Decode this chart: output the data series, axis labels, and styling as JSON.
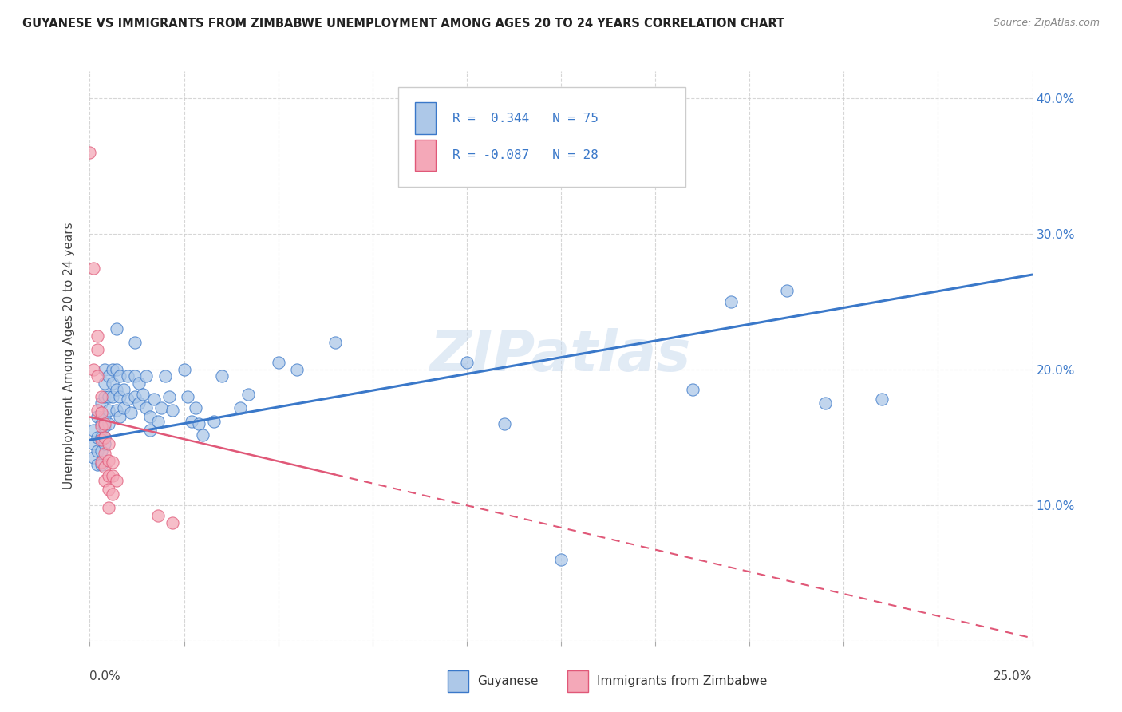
{
  "title": "GUYANESE VS IMMIGRANTS FROM ZIMBABWE UNEMPLOYMENT AMONG AGES 20 TO 24 YEARS CORRELATION CHART",
  "source": "Source: ZipAtlas.com",
  "ylabel": "Unemployment Among Ages 20 to 24 years",
  "legend_label1": "Guyanese",
  "legend_label2": "Immigrants from Zimbabwe",
  "R1": 0.344,
  "N1": 75,
  "R2": -0.087,
  "N2": 28,
  "color_blue": "#adc8e8",
  "color_pink": "#f4a8b8",
  "line_blue": "#3a78c9",
  "line_pink": "#e05878",
  "watermark": "ZIPatlas",
  "blue_points": [
    [
      0.001,
      0.155
    ],
    [
      0.001,
      0.145
    ],
    [
      0.001,
      0.135
    ],
    [
      0.002,
      0.165
    ],
    [
      0.002,
      0.15
    ],
    [
      0.002,
      0.14
    ],
    [
      0.002,
      0.13
    ],
    [
      0.003,
      0.175
    ],
    [
      0.003,
      0.16
    ],
    [
      0.003,
      0.15
    ],
    [
      0.003,
      0.14
    ],
    [
      0.003,
      0.13
    ],
    [
      0.004,
      0.2
    ],
    [
      0.004,
      0.19
    ],
    [
      0.004,
      0.18
    ],
    [
      0.004,
      0.165
    ],
    [
      0.004,
      0.158
    ],
    [
      0.004,
      0.15
    ],
    [
      0.004,
      0.145
    ],
    [
      0.005,
      0.195
    ],
    [
      0.005,
      0.18
    ],
    [
      0.005,
      0.17
    ],
    [
      0.005,
      0.16
    ],
    [
      0.006,
      0.2
    ],
    [
      0.006,
      0.19
    ],
    [
      0.006,
      0.18
    ],
    [
      0.007,
      0.23
    ],
    [
      0.007,
      0.2
    ],
    [
      0.007,
      0.185
    ],
    [
      0.007,
      0.17
    ],
    [
      0.008,
      0.195
    ],
    [
      0.008,
      0.18
    ],
    [
      0.008,
      0.165
    ],
    [
      0.009,
      0.185
    ],
    [
      0.009,
      0.172
    ],
    [
      0.01,
      0.195
    ],
    [
      0.01,
      0.178
    ],
    [
      0.011,
      0.168
    ],
    [
      0.012,
      0.22
    ],
    [
      0.012,
      0.195
    ],
    [
      0.012,
      0.18
    ],
    [
      0.013,
      0.19
    ],
    [
      0.013,
      0.175
    ],
    [
      0.014,
      0.182
    ],
    [
      0.015,
      0.195
    ],
    [
      0.015,
      0.172
    ],
    [
      0.016,
      0.165
    ],
    [
      0.016,
      0.155
    ],
    [
      0.017,
      0.178
    ],
    [
      0.018,
      0.162
    ],
    [
      0.019,
      0.172
    ],
    [
      0.02,
      0.195
    ],
    [
      0.021,
      0.18
    ],
    [
      0.022,
      0.17
    ],
    [
      0.025,
      0.2
    ],
    [
      0.026,
      0.18
    ],
    [
      0.027,
      0.162
    ],
    [
      0.028,
      0.172
    ],
    [
      0.029,
      0.16
    ],
    [
      0.03,
      0.152
    ],
    [
      0.033,
      0.162
    ],
    [
      0.035,
      0.195
    ],
    [
      0.04,
      0.172
    ],
    [
      0.042,
      0.182
    ],
    [
      0.05,
      0.205
    ],
    [
      0.055,
      0.2
    ],
    [
      0.065,
      0.22
    ],
    [
      0.1,
      0.205
    ],
    [
      0.11,
      0.16
    ],
    [
      0.125,
      0.06
    ],
    [
      0.16,
      0.185
    ],
    [
      0.17,
      0.25
    ],
    [
      0.185,
      0.258
    ],
    [
      0.195,
      0.175
    ],
    [
      0.21,
      0.178
    ]
  ],
  "pink_points": [
    [
      0.0,
      0.36
    ],
    [
      0.001,
      0.275
    ],
    [
      0.001,
      0.2
    ],
    [
      0.002,
      0.225
    ],
    [
      0.002,
      0.215
    ],
    [
      0.002,
      0.195
    ],
    [
      0.002,
      0.17
    ],
    [
      0.003,
      0.18
    ],
    [
      0.003,
      0.168
    ],
    [
      0.003,
      0.158
    ],
    [
      0.003,
      0.148
    ],
    [
      0.003,
      0.132
    ],
    [
      0.004,
      0.16
    ],
    [
      0.004,
      0.15
    ],
    [
      0.004,
      0.138
    ],
    [
      0.004,
      0.128
    ],
    [
      0.004,
      0.118
    ],
    [
      0.005,
      0.145
    ],
    [
      0.005,
      0.133
    ],
    [
      0.005,
      0.122
    ],
    [
      0.005,
      0.112
    ],
    [
      0.005,
      0.098
    ],
    [
      0.006,
      0.132
    ],
    [
      0.006,
      0.122
    ],
    [
      0.006,
      0.108
    ],
    [
      0.007,
      0.118
    ],
    [
      0.018,
      0.092
    ],
    [
      0.022,
      0.087
    ]
  ],
  "x_range": [
    0.0,
    0.25
  ],
  "y_range": [
    0.0,
    0.42
  ],
  "blue_line_x": [
    0.0,
    0.25
  ],
  "blue_line_y": [
    0.148,
    0.27
  ],
  "pink_line_x": [
    0.0,
    0.25
  ],
  "pink_line_y": [
    0.165,
    0.002
  ],
  "x_ticks": [
    0.0,
    0.025,
    0.05,
    0.075,
    0.1,
    0.125,
    0.15,
    0.175,
    0.2,
    0.225,
    0.25
  ],
  "y_ticks": [
    0.0,
    0.1,
    0.2,
    0.3,
    0.4
  ],
  "y_tick_labels": [
    "",
    "10.0%",
    "20.0%",
    "30.0%",
    "40.0%"
  ]
}
